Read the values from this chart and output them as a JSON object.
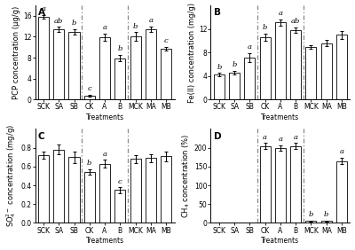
{
  "categories": [
    "SCK",
    "SA",
    "SB",
    "CK",
    "A",
    "B",
    "MCK",
    "MA",
    "MB"
  ],
  "panel_A": {
    "title": "A",
    "ylabel": "PCP concentration (μg/g)",
    "values": [
      15.8,
      13.4,
      13.0,
      0.7,
      11.9,
      7.9,
      12.1,
      13.5,
      9.7
    ],
    "errors": [
      0.4,
      0.5,
      0.5,
      0.2,
      0.7,
      0.6,
      0.8,
      0.5,
      0.4
    ],
    "labels": [
      "a",
      "ab",
      "b",
      "c",
      "a",
      "b",
      "b",
      "a",
      "c"
    ],
    "ylim": [
      0,
      18
    ],
    "yticks": [
      0,
      4,
      8,
      12,
      16
    ]
  },
  "panel_B": {
    "title": "B",
    "ylabel": "Fe(II) concentration (mg/g)",
    "values": [
      4.2,
      4.6,
      7.1,
      10.6,
      13.1,
      11.8,
      9.0,
      9.6,
      11.0
    ],
    "errors": [
      0.3,
      0.3,
      0.8,
      0.6,
      0.5,
      0.5,
      0.3,
      0.5,
      0.7
    ],
    "labels": [
      "b",
      "b",
      "a",
      "b",
      "a",
      "ab",
      "",
      "",
      ""
    ],
    "ylim": [
      0,
      16
    ],
    "yticks": [
      0,
      4,
      8,
      12
    ]
  },
  "panel_C": {
    "title": "C",
    "ylabel": "SO$_4^{2-}$ concentration (mg/g)",
    "values": [
      0.72,
      0.78,
      0.7,
      0.54,
      0.63,
      0.35,
      0.68,
      0.69,
      0.71
    ],
    "errors": [
      0.04,
      0.05,
      0.06,
      0.03,
      0.04,
      0.03,
      0.04,
      0.04,
      0.05
    ],
    "labels": [
      "",
      "",
      "",
      "b",
      "a",
      "c",
      "",
      "",
      ""
    ],
    "ylim": [
      0.0,
      1.0
    ],
    "yticks": [
      0.0,
      0.2,
      0.4,
      0.6,
      0.8
    ]
  },
  "panel_D": {
    "title": "D",
    "ylabel": "CH$_4$ concentration (%)",
    "values": [
      0,
      0,
      0,
      205,
      200,
      205,
      5,
      5,
      165
    ],
    "errors": [
      0,
      0,
      0,
      8,
      7,
      8,
      2,
      2,
      9
    ],
    "labels": [
      "",
      "",
      "",
      "a",
      "a",
      "a",
      "b",
      "b",
      "a"
    ],
    "ylim": [
      0,
      250
    ],
    "yticks": [
      0,
      50,
      100,
      150,
      200
    ]
  },
  "dashed_line1_idx": 2.5,
  "dashed_line2_idx": 5.5,
  "bar_color": "#ffffff",
  "bar_edge_color": "#000000",
  "bar_width": 0.7,
  "xlabel": "Treatments",
  "tick_fontsize": 5.5,
  "label_fontsize": 6,
  "title_fontsize": 7.5,
  "ylabel_fontsize": 6
}
